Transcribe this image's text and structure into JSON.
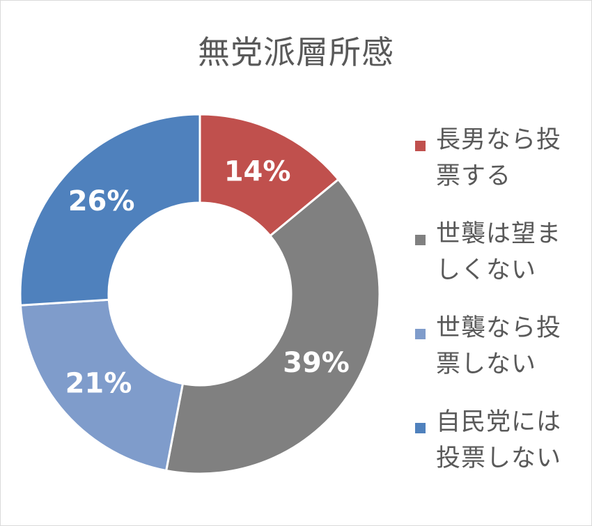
{
  "chart_data": {
    "type": "pie",
    "title": "無党派層所感",
    "categories": [
      "長男なら投票する",
      "世襲は望ましくない",
      "世襲なら投票しない",
      "自民党には投票しない"
    ],
    "values": [
      14,
      39,
      21,
      26
    ],
    "value_labels": [
      "14%",
      "39%",
      "21%",
      "26%"
    ],
    "colors": [
      "#c0504d",
      "#808080",
      "#7f9ccb",
      "#4f81bd"
    ],
    "donut": true,
    "legend_position": "right"
  }
}
